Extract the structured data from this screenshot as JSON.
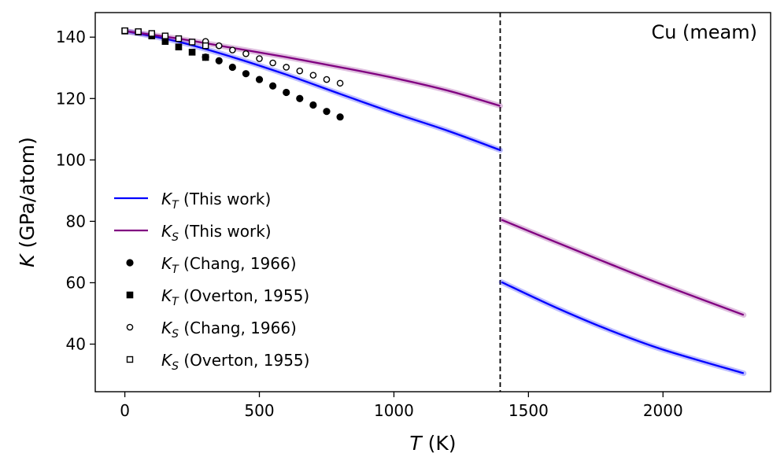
{
  "chart_data": {
    "type": "line",
    "annotation": "Cu (meam)",
    "xlabel": {
      "var": "T",
      "unit": " (K)"
    },
    "ylabel": {
      "var": "K",
      "unit": " (GPa/atom)"
    },
    "xlim": [
      -110,
      2400
    ],
    "ylim": [
      24.5,
      148
    ],
    "xticks": [
      0,
      500,
      1000,
      1500,
      2000
    ],
    "yticks": [
      40,
      60,
      80,
      100,
      120,
      140
    ],
    "vline_x": 1395,
    "legend_position": "center-left",
    "series": [
      {
        "name": "K_T (This work)",
        "kind": "line",
        "color": "#0000ff",
        "label_var": "K",
        "label_sub": "T",
        "label_rest": " (This work)",
        "segments": [
          {
            "x": [
              0,
              200,
              400,
              600,
              800,
              1000,
              1200,
              1395
            ],
            "y": [
              142,
              138.5,
              133.5,
              127.8,
              121.5,
              115.3,
              109.5,
              103.2
            ]
          },
          {
            "x": [
              1400,
              1600,
              1800,
              2000,
              2300
            ],
            "y": [
              60.2,
              52.0,
              44.6,
              38.2,
              30.5
            ]
          }
        ]
      },
      {
        "name": "K_S (This work)",
        "kind": "line",
        "color": "#800080",
        "label_var": "K",
        "label_sub": "S",
        "label_rest": " (This work)",
        "segments": [
          {
            "x": [
              0,
              200,
              400,
              600,
              800,
              1000,
              1200,
              1395
            ],
            "y": [
              142,
              139.5,
              136.5,
              133.5,
              130.2,
              126.7,
              122.6,
              117.6
            ]
          },
          {
            "x": [
              1400,
              1600,
              1800,
              2000,
              2300
            ],
            "y": [
              80.5,
              73.3,
              66.2,
              59.3,
              49.5
            ]
          }
        ]
      },
      {
        "name": "K_T (Chang, 1966)",
        "kind": "scatter",
        "marker": "filled-circle",
        "color": "#000000",
        "label_var": "K",
        "label_sub": "T",
        "label_rest": " (Chang, 1966)",
        "x": [
          300,
          350,
          400,
          450,
          500,
          550,
          600,
          650,
          700,
          750,
          800
        ],
        "y": [
          133.5,
          132.3,
          130.2,
          128.1,
          126.2,
          124.1,
          122.0,
          120.0,
          117.9,
          115.8,
          114.0
        ]
      },
      {
        "name": "K_T (Overton, 1955)",
        "kind": "scatter",
        "marker": "filled-square",
        "color": "#000000",
        "label_var": "K",
        "label_sub": "T",
        "label_rest": " (Overton, 1955)",
        "x": [
          0,
          50,
          100,
          150,
          200,
          250,
          300
        ],
        "y": [
          142.0,
          141.7,
          140.4,
          138.6,
          136.8,
          135.1,
          133.4
        ]
      },
      {
        "name": "K_S (Chang, 1966)",
        "kind": "scatter",
        "marker": "open-circle",
        "color": "#000000",
        "label_var": "K",
        "label_sub": "S",
        "label_rest": " (Chang, 1966)",
        "x": [
          300,
          350,
          400,
          450,
          500,
          550,
          600,
          650,
          700,
          750,
          800
        ],
        "y": [
          138.6,
          137.2,
          135.8,
          134.6,
          133.0,
          131.6,
          130.2,
          129.0,
          127.6,
          126.2,
          125.0
        ]
      },
      {
        "name": "K_S (Overton, 1955)",
        "kind": "scatter",
        "marker": "open-square",
        "color": "#000000",
        "label_var": "K",
        "label_sub": "S",
        "label_rest": " (Overton, 1955)",
        "x": [
          0,
          50,
          100,
          150,
          200,
          250,
          300
        ],
        "y": [
          142.1,
          141.8,
          141.2,
          140.4,
          139.5,
          138.4,
          137.2
        ]
      }
    ]
  }
}
